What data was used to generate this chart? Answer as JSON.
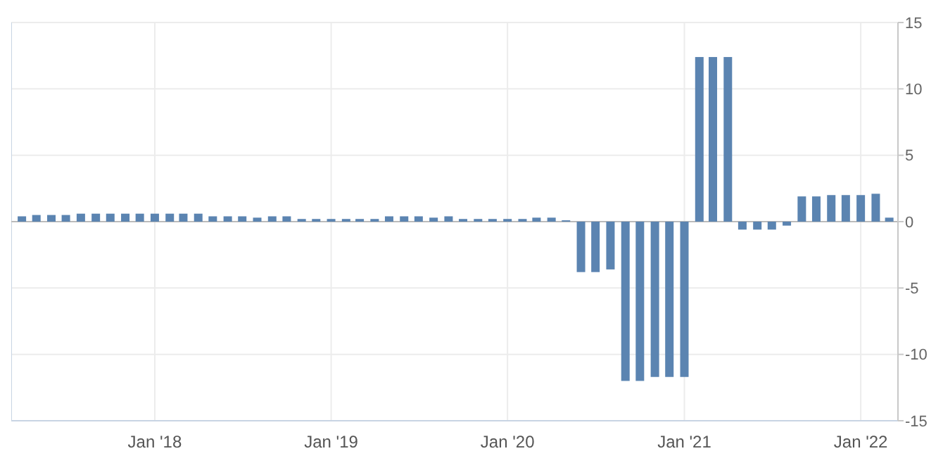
{
  "chart_data": {
    "type": "bar",
    "color": "#5b84b1",
    "x": [
      "2017-04",
      "2017-05",
      "2017-06",
      "2017-07",
      "2017-08",
      "2017-09",
      "2017-10",
      "2017-11",
      "2017-12",
      "2018-01",
      "2018-02",
      "2018-03",
      "2018-04",
      "2018-05",
      "2018-06",
      "2018-07",
      "2018-08",
      "2018-09",
      "2018-10",
      "2018-11",
      "2018-12",
      "2019-01",
      "2019-02",
      "2019-03",
      "2019-04",
      "2019-05",
      "2019-06",
      "2019-07",
      "2019-08",
      "2019-09",
      "2019-10",
      "2019-11",
      "2019-12",
      "2020-01",
      "2020-02",
      "2020-03",
      "2020-04",
      "2020-05",
      "2020-06",
      "2020-07",
      "2020-08",
      "2020-09",
      "2020-10",
      "2020-11",
      "2020-12",
      "2021-01",
      "2021-02",
      "2021-03",
      "2021-04",
      "2021-05",
      "2021-06",
      "2021-07",
      "2021-08",
      "2021-09",
      "2021-10",
      "2021-11",
      "2021-12",
      "2022-01",
      "2022-02",
      "2022-03"
    ],
    "values": [
      0.4,
      0.5,
      0.5,
      0.5,
      0.6,
      0.6,
      0.6,
      0.6,
      0.6,
      0.6,
      0.6,
      0.6,
      0.6,
      0.4,
      0.4,
      0.4,
      0.3,
      0.4,
      0.4,
      0.2,
      0.2,
      0.2,
      0.2,
      0.2,
      0.2,
      0.4,
      0.4,
      0.4,
      0.3,
      0.4,
      0.2,
      0.2,
      0.2,
      0.2,
      0.2,
      0.3,
      0.3,
      0.1,
      -3.8,
      -3.8,
      -3.6,
      -12.0,
      -12.0,
      -11.7,
      -11.7,
      -11.7,
      12.4,
      12.4,
      12.4,
      -0.6,
      -0.6,
      -0.6,
      -0.3,
      1.9,
      1.9,
      2.0,
      2.0,
      2.0,
      2.1,
      0.3
    ],
    "xlim": [
      "2017-03-10",
      "2022-03-19"
    ],
    "xticks": [
      {
        "value": "2018-01",
        "label": "Jan '18"
      },
      {
        "value": "2019-01",
        "label": "Jan '19"
      },
      {
        "value": "2020-01",
        "label": "Jan '20"
      },
      {
        "value": "2021-01",
        "label": "Jan '21"
      },
      {
        "value": "2022-01",
        "label": "Jan '22"
      }
    ],
    "ylim": [
      -15,
      15
    ],
    "yticks": [
      -15,
      -10,
      -5,
      0,
      5,
      10,
      15
    ],
    "grid": true
  }
}
